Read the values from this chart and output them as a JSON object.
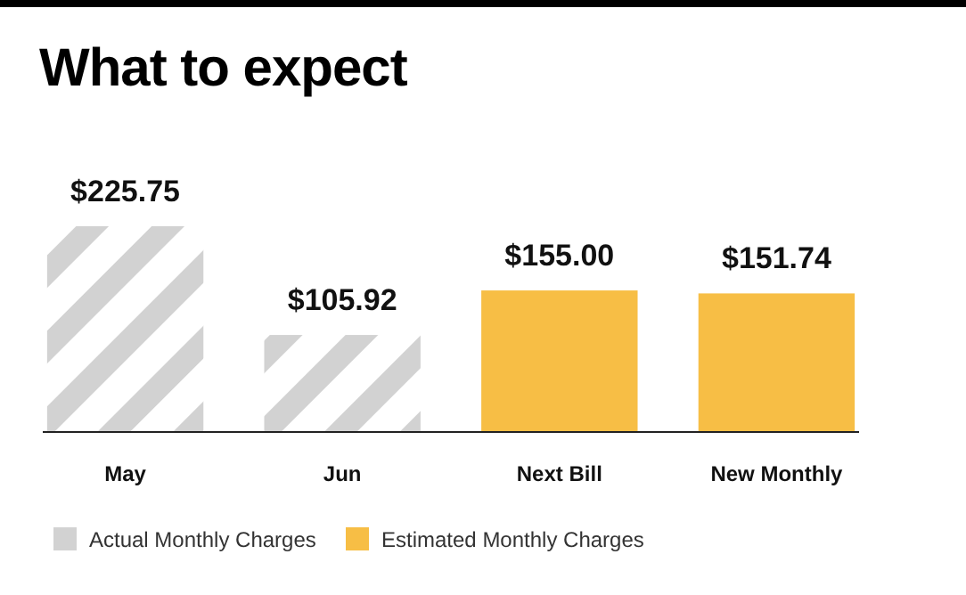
{
  "chart_data": {
    "type": "bar",
    "title": "What to expect",
    "categories": [
      "May",
      "Jun",
      "Next Bill",
      "New Monthly"
    ],
    "series": [
      {
        "name": "Actual Monthly Charges",
        "color": "#d2d2d2",
        "values": [
          225.75,
          105.92,
          null,
          null
        ],
        "value_labels": [
          "$225.75",
          "$105.92",
          null,
          null
        ]
      },
      {
        "name": "Estimated Monthly Charges",
        "color": "#f7be45",
        "values": [
          null,
          null,
          155.0,
          151.74
        ],
        "value_labels": [
          null,
          null,
          "$155.00",
          "$151.74"
        ]
      }
    ],
    "legend": "bottom left"
  }
}
